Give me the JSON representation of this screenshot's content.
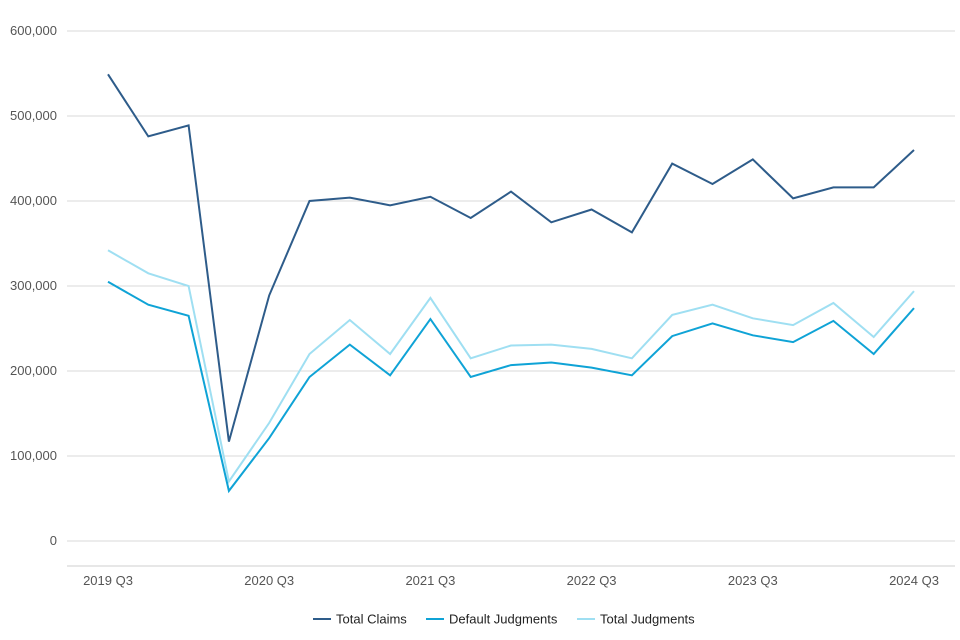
{
  "chart_data": {
    "type": "line",
    "x": [
      "2019 Q3",
      "2019 Q4",
      "2020 Q1",
      "2020 Q2",
      "2020 Q3",
      "2020 Q4",
      "2021 Q1",
      "2021 Q2",
      "2021 Q3",
      "2021 Q4",
      "2022 Q1",
      "2022 Q2",
      "2022 Q3",
      "2022 Q4",
      "2023 Q1",
      "2023 Q2",
      "2023 Q3",
      "2023 Q4",
      "2024 Q1",
      "2024 Q2",
      "2024 Q3"
    ],
    "x_tick_labels": [
      "2019 Q3",
      "2020 Q3",
      "2021 Q3",
      "2022 Q3",
      "2023 Q3",
      "2024 Q3"
    ],
    "y_tick_labels": [
      "0",
      "100,000",
      "200,000",
      "300,000",
      "400,000",
      "500,000",
      "600,000"
    ],
    "ylim": [
      0,
      600000
    ],
    "grid": true,
    "legend_position": "bottom",
    "series": [
      {
        "name": "Total Claims",
        "color": "#2e5c8a",
        "values": [
          549000,
          476000,
          489000,
          117000,
          289000,
          400000,
          404000,
          395000,
          405000,
          380000,
          411000,
          375000,
          390000,
          363000,
          444000,
          420000,
          449000,
          403000,
          416000,
          416000,
          460000
        ]
      },
      {
        "name": "Default Judgments",
        "color": "#0fa3d6",
        "values": [
          305000,
          278000,
          265000,
          59000,
          121000,
          193000,
          231000,
          195000,
          261000,
          193000,
          207000,
          210000,
          204000,
          195000,
          241000,
          256000,
          242000,
          234000,
          259000,
          220000,
          274000
        ]
      },
      {
        "name": "Total Judgments",
        "color": "#9fdff2",
        "values": [
          342000,
          315000,
          300000,
          70000,
          139000,
          220000,
          260000,
          220000,
          286000,
          215000,
          230000,
          231000,
          226000,
          215000,
          266000,
          278000,
          262000,
          254000,
          280000,
          240000,
          294000
        ]
      }
    ]
  }
}
